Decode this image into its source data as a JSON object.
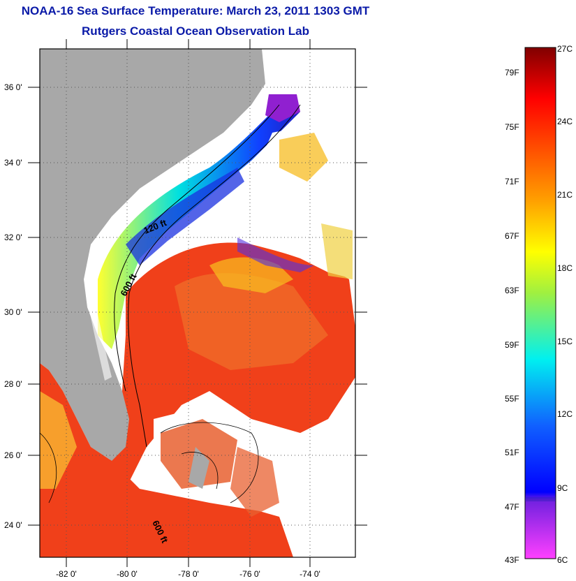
{
  "title_line1": "NOAA-16 Sea Surface Temperature:  March 23, 2011 1303 GMT",
  "title_line2": "Rutgers Coastal Ocean Observation Lab",
  "lat_ticks": [
    "36 0'",
    "34 0'",
    "32 0'",
    "30 0'",
    "28 0'",
    "26 0'",
    "24 0'"
  ],
  "lon_ticks": [
    "-82 0'",
    "-80 0'",
    "-78 0'",
    "-76 0'",
    "-74 0'"
  ],
  "contour_labels": {
    "shelf": "120 ft",
    "slope_north": "600 ft",
    "slope_south": "600 ft"
  },
  "colorbar": {
    "fahrenheit": [
      "79F",
      "75F",
      "71F",
      "67F",
      "63F",
      "59F",
      "55F",
      "51F",
      "47F",
      "43F"
    ],
    "celsius": [
      "27C",
      "24C",
      "21C",
      "18C",
      "15C",
      "12C",
      "9C",
      "6C"
    ]
  },
  "colors": {
    "land": "#a8a8a8",
    "warm": "#f0401a",
    "cold": "#2020e0",
    "title": "#0a1aa8"
  }
}
